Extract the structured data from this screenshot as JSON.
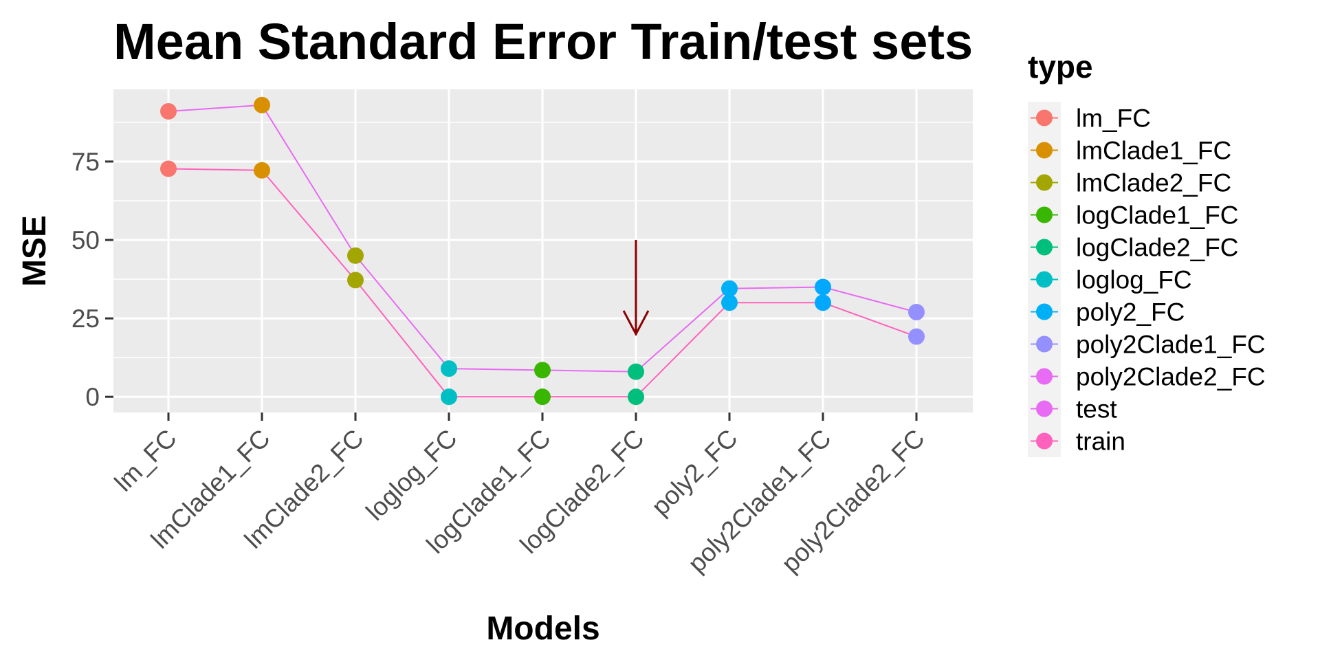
{
  "chart_data": {
    "type": "line",
    "title": "Mean Standard Error Train/test sets",
    "xlabel": "Models",
    "ylabel": "MSE",
    "categories": [
      "lm_FC",
      "lmClade1_FC",
      "lmClade2_FC",
      "loglog_FC",
      "logClade1_FC",
      "logClade2_FC",
      "poly2_FC",
      "poly2Clade1_FC",
      "poly2Clade2_FC"
    ],
    "ylim": [
      -5,
      98
    ],
    "yticks": [
      0,
      25,
      50,
      75
    ],
    "ytick_labels": [
      "0",
      "25",
      "50",
      "75"
    ],
    "grid": true,
    "legend": {
      "title": "type",
      "placement": "right",
      "entries": [
        {
          "label": "lm_FC",
          "color": "#F8766D"
        },
        {
          "label": "lmClade1_FC",
          "color": "#D89000"
        },
        {
          "label": "lmClade2_FC",
          "color": "#A3A500"
        },
        {
          "label": "logClade1_FC",
          "color": "#39B600"
        },
        {
          "label": "logClade2_FC",
          "color": "#00BF7D"
        },
        {
          "label": "loglog_FC",
          "color": "#00BFC4"
        },
        {
          "label": "poly2_FC",
          "color": "#00B0F6"
        },
        {
          "label": "poly2Clade1_FC",
          "color": "#9590FF"
        },
        {
          "label": "poly2Clade2_FC",
          "color": "#E76BF3"
        },
        {
          "label": "test",
          "color": "#E76BF3"
        },
        {
          "label": "train",
          "color": "#FF62BC"
        }
      ]
    },
    "series": [
      {
        "name": "test",
        "color": "#E76BF3",
        "values": [
          91,
          93,
          45,
          9,
          8.5,
          8,
          34.5,
          35,
          27
        ]
      },
      {
        "name": "train",
        "color": "#FF62BC",
        "values": [
          72.7,
          72.2,
          37.2,
          0,
          0,
          0,
          30,
          30,
          19.2
        ]
      }
    ],
    "points": [
      {
        "x": "lm_FC",
        "y": 91,
        "color": "#F8766D"
      },
      {
        "x": "lm_FC",
        "y": 72.7,
        "color": "#F8766D"
      },
      {
        "x": "lmClade1_FC",
        "y": 93,
        "color": "#D89000"
      },
      {
        "x": "lmClade1_FC",
        "y": 72.2,
        "color": "#D89000"
      },
      {
        "x": "lmClade2_FC",
        "y": 45,
        "color": "#A3A500"
      },
      {
        "x": "lmClade2_FC",
        "y": 37.2,
        "color": "#A3A500"
      },
      {
        "x": "loglog_FC",
        "y": 9,
        "color": "#00BFC4"
      },
      {
        "x": "loglog_FC",
        "y": 0,
        "color": "#00BFC4"
      },
      {
        "x": "logClade1_FC",
        "y": 8.5,
        "color": "#39B600"
      },
      {
        "x": "logClade1_FC",
        "y": 0,
        "color": "#39B600"
      },
      {
        "x": "logClade2_FC",
        "y": 8,
        "color": "#00BF7D"
      },
      {
        "x": "logClade2_FC",
        "y": 0,
        "color": "#00BF7D"
      },
      {
        "x": "poly2_FC",
        "y": 34.5,
        "color": "#00B0F6"
      },
      {
        "x": "poly2_FC",
        "y": 30,
        "color": "#00B0F6"
      },
      {
        "x": "poly2Clade1_FC",
        "y": 35,
        "color": "#00A9FF"
      },
      {
        "x": "poly2Clade1_FC",
        "y": 30,
        "color": "#00A9FF"
      },
      {
        "x": "poly2Clade2_FC",
        "y": 27,
        "color": "#9590FF"
      },
      {
        "x": "poly2Clade2_FC",
        "y": 19.2,
        "color": "#9590FF"
      }
    ],
    "annotations": [
      {
        "type": "arrow",
        "x": "logClade2_FC",
        "y_start": 50,
        "y_end": 20,
        "color": "#8B0000"
      }
    ]
  }
}
